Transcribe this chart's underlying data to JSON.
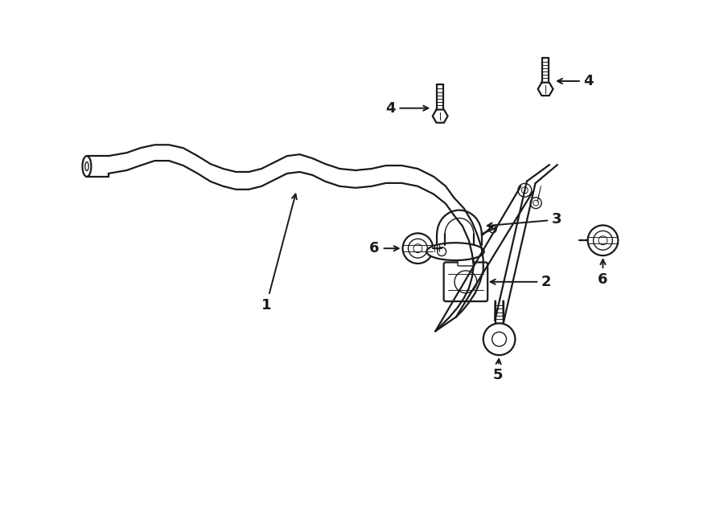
{
  "bg_color": "#ffffff",
  "line_color": "#1a1a1a",
  "lw": 1.6,
  "lw_thin": 1.0,
  "lw_xtra": 0.7,
  "fig_w": 9.0,
  "fig_h": 6.61,
  "font_size": 13,
  "arrow_color": "#1a1a1a",
  "text_color": "#1a1a1a",
  "xlim": [
    0,
    9
  ],
  "ylim": [
    0,
    6.61
  ]
}
